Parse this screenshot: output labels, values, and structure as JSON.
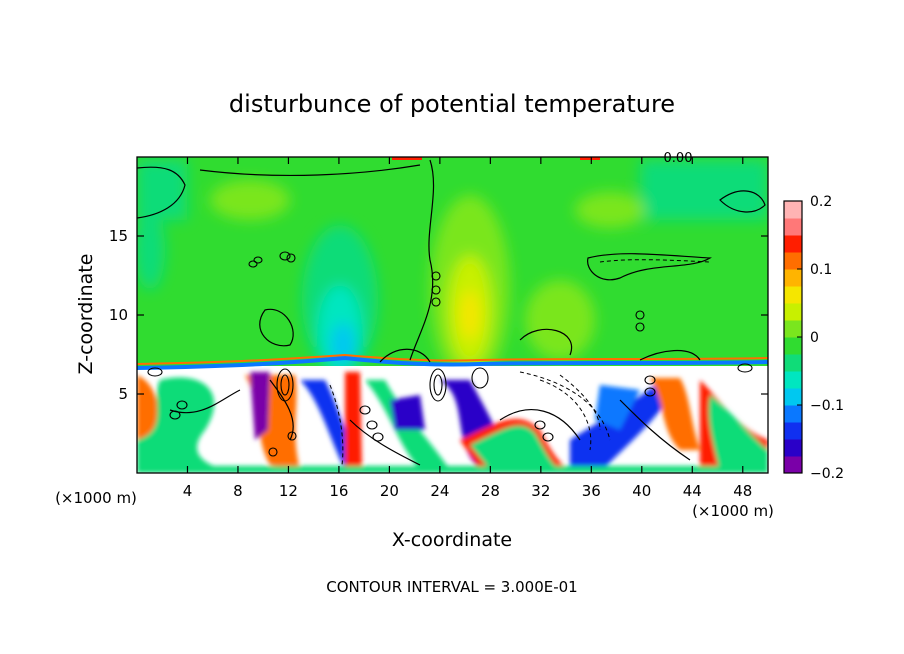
{
  "chart_data": {
    "type": "heatmap",
    "title": "disturbunce of potential temperature",
    "xlabel": "X-coordinate",
    "ylabel": "Z-coordinate",
    "x_unit_left": "(×1000 m)",
    "x_unit_right": "(×1000 m)",
    "x_ticks": [
      4,
      8,
      12,
      16,
      20,
      24,
      28,
      32,
      36,
      40,
      44,
      48
    ],
    "y_ticks": [
      5,
      10,
      15
    ],
    "xlim": [
      0,
      50
    ],
    "ylim": [
      0,
      20
    ],
    "contour_label": "0.00",
    "contour_interval_text": "CONTOUR INTERVAL = 3.000E-01",
    "colorbar": {
      "range": [
        -0.2,
        0.2
      ],
      "tick_values": [
        -0.2,
        -0.1,
        0,
        0.1,
        0.2
      ],
      "tick_labels": [
        "−0.2",
        "−0.1",
        "0",
        "0.1",
        "0.2"
      ],
      "colors": [
        "#7a00a8",
        "#2a00c8",
        "#1030f0",
        "#0a78ff",
        "#00c8f0",
        "#00e6c0",
        "#10dc78",
        "#30dc30",
        "#7ae61e",
        "#c8f000",
        "#f5e600",
        "#ffb400",
        "#ff6e00",
        "#ff1e00",
        "#ff7878",
        "#ffb4b4"
      ]
    },
    "field_description": "Upper layer (z > 7) near zero; lower layer (z < 7) strongly perturbed with white (out-of-range) regions"
  }
}
